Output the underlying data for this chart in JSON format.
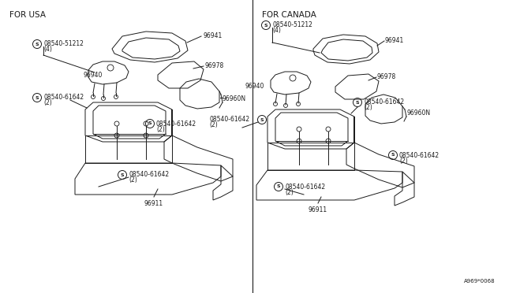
{
  "title_left": "FOR USA",
  "title_right": "FOR CANADA",
  "watermark": "A969*0068",
  "bg_color": "#ffffff",
  "line_color": "#1a1a1a",
  "text_color": "#1a1a1a",
  "font_size_title": 7.5,
  "font_size_label": 5.5,
  "font_size_watermark": 5.0
}
